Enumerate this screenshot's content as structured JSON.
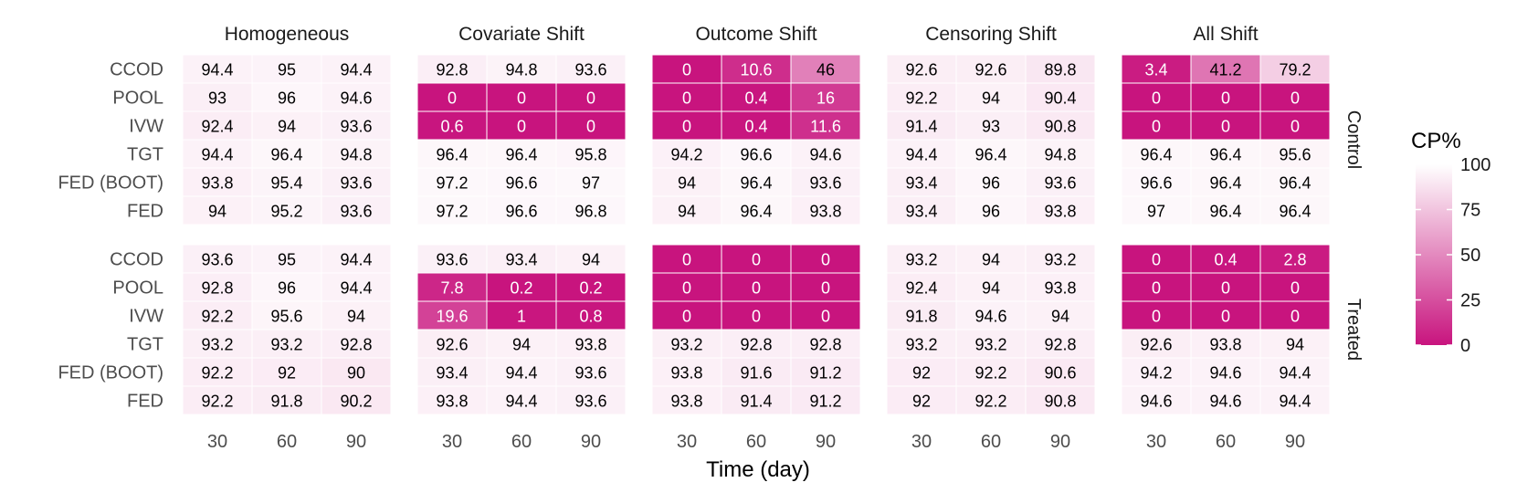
{
  "chart_data": {
    "type": "heatmap",
    "xlabel": "Time (day)",
    "x_ticks": [
      "30",
      "60",
      "90"
    ],
    "panels": [
      "Homogeneous",
      "Covariate Shift",
      "Outcome Shift",
      "Censoring Shift",
      "All Shift"
    ],
    "groups": [
      "Control",
      "Treated"
    ],
    "rows": [
      "CCOD",
      "POOL",
      "IVW",
      "TGT",
      "FED (BOOT)",
      "FED"
    ],
    "legend": {
      "title": "CP%",
      "ticks": [
        "0",
        "25",
        "50",
        "75",
        "100"
      ],
      "range": [
        0,
        100
      ]
    },
    "colors": {
      "low": "#c8147e",
      "high": "#ffffff",
      "cell_border": "#ffffff"
    },
    "cells": {
      "Control": {
        "Homogeneous": [
          [
            "94.4",
            "95",
            "94.4"
          ],
          [
            "93",
            "96",
            "94.6"
          ],
          [
            "92.4",
            "94",
            "93.6"
          ],
          [
            "94.4",
            "96.4",
            "94.8"
          ],
          [
            "93.8",
            "95.4",
            "93.6"
          ],
          [
            "94",
            "95.2",
            "93.6"
          ]
        ],
        "Covariate Shift": [
          [
            "92.8",
            "94.8",
            "93.6"
          ],
          [
            "0",
            "0",
            "0"
          ],
          [
            "0.6",
            "0",
            "0"
          ],
          [
            "96.4",
            "96.4",
            "95.8"
          ],
          [
            "97.2",
            "96.6",
            "97"
          ],
          [
            "97.2",
            "96.6",
            "96.8"
          ]
        ],
        "Outcome Shift": [
          [
            "0",
            "10.6",
            "46"
          ],
          [
            "0",
            "0.4",
            "16"
          ],
          [
            "0",
            "0.4",
            "11.6"
          ],
          [
            "94.2",
            "96.6",
            "94.6"
          ],
          [
            "94",
            "96.4",
            "93.6"
          ],
          [
            "94",
            "96.4",
            "93.8"
          ]
        ],
        "Censoring Shift": [
          [
            "92.6",
            "92.6",
            "89.8"
          ],
          [
            "92.2",
            "94",
            "90.4"
          ],
          [
            "91.4",
            "93",
            "90.8"
          ],
          [
            "94.4",
            "96.4",
            "94.8"
          ],
          [
            "93.4",
            "96",
            "93.6"
          ],
          [
            "93.4",
            "96",
            "93.8"
          ]
        ],
        "All Shift": [
          [
            "3.4",
            "41.2",
            "79.2"
          ],
          [
            "0",
            "0",
            "0"
          ],
          [
            "0",
            "0",
            "0"
          ],
          [
            "96.4",
            "96.4",
            "95.6"
          ],
          [
            "96.6",
            "96.4",
            "96.4"
          ],
          [
            "97",
            "96.4",
            "96.4"
          ]
        ]
      },
      "Treated": {
        "Homogeneous": [
          [
            "93.6",
            "95",
            "94.4"
          ],
          [
            "92.8",
            "96",
            "94.4"
          ],
          [
            "92.2",
            "95.6",
            "94"
          ],
          [
            "93.2",
            "93.2",
            "92.8"
          ],
          [
            "92.2",
            "92",
            "90"
          ],
          [
            "92.2",
            "91.8",
            "90.2"
          ]
        ],
        "Covariate Shift": [
          [
            "93.6",
            "93.4",
            "94"
          ],
          [
            "7.8",
            "0.2",
            "0.2"
          ],
          [
            "19.6",
            "1",
            "0.8"
          ],
          [
            "92.6",
            "94",
            "93.8"
          ],
          [
            "93.4",
            "94.4",
            "93.6"
          ],
          [
            "93.8",
            "94.4",
            "93.6"
          ]
        ],
        "Outcome Shift": [
          [
            "0",
            "0",
            "0"
          ],
          [
            "0",
            "0",
            "0"
          ],
          [
            "0",
            "0",
            "0"
          ],
          [
            "93.2",
            "92.8",
            "92.8"
          ],
          [
            "93.8",
            "91.6",
            "91.2"
          ],
          [
            "93.8",
            "91.4",
            "91.2"
          ]
        ],
        "Censoring Shift": [
          [
            "93.2",
            "94",
            "93.2"
          ],
          [
            "92.4",
            "94",
            "93.8"
          ],
          [
            "91.8",
            "94.6",
            "94"
          ],
          [
            "93.2",
            "93.2",
            "92.8"
          ],
          [
            "92",
            "92.2",
            "90.6"
          ],
          [
            "92",
            "92.2",
            "90.8"
          ]
        ],
        "All Shift": [
          [
            "0",
            "0.4",
            "2.8"
          ],
          [
            "0",
            "0",
            "0"
          ],
          [
            "0",
            "0",
            "0"
          ],
          [
            "92.6",
            "93.8",
            "94"
          ],
          [
            "94.2",
            "94.6",
            "94.4"
          ],
          [
            "94.6",
            "94.6",
            "94.4"
          ]
        ]
      }
    }
  }
}
